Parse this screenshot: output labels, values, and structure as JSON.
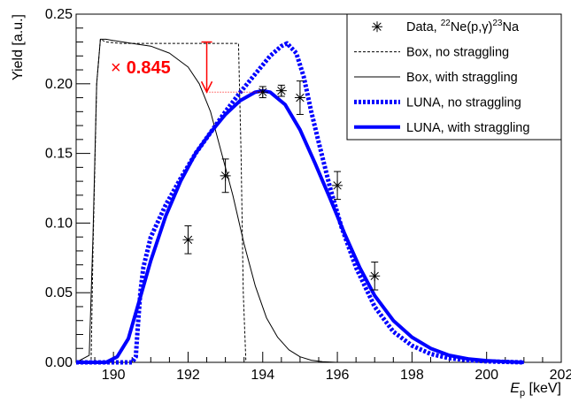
{
  "chart_data": {
    "type": "line",
    "xlabel": {
      "main": "E",
      "sub": "p",
      "unit": " [keV]"
    },
    "ylabel": "Yield [a.u.]",
    "xlim": [
      189,
      202
    ],
    "ylim": [
      0,
      0.25
    ],
    "x_ticks": [
      {
        "value": 190,
        "label": "190"
      },
      {
        "value": 192,
        "label": "192"
      },
      {
        "value": 194,
        "label": "194"
      },
      {
        "value": 196,
        "label": "196"
      },
      {
        "value": 198,
        "label": "198"
      },
      {
        "value": 200,
        "label": "200"
      },
      {
        "value": 202,
        "label": "202"
      }
    ],
    "y_ticks": [
      {
        "value": 0,
        "label": "0.00"
      },
      {
        "value": 0.05,
        "label": "0.05"
      },
      {
        "value": 0.1,
        "label": "0.10"
      },
      {
        "value": 0.15,
        "label": "0.15"
      },
      {
        "value": 0.2,
        "label": "0.20"
      },
      {
        "value": 0.25,
        "label": "0.25"
      }
    ],
    "legend": {
      "placement": "top-right",
      "entries": [
        {
          "key": "data",
          "label_parts": [
            "Data, ",
            "22",
            "Ne(p,γ)",
            "23",
            "Na"
          ],
          "superscripts": [
            1,
            3
          ]
        },
        {
          "key": "box_no",
          "label_parts": [
            "Box, no straggling"
          ],
          "superscripts": []
        },
        {
          "key": "box_with",
          "label_parts": [
            "Box, with straggling"
          ],
          "superscripts": []
        },
        {
          "key": "luna_no",
          "label_parts": [
            "LUNA, no straggling"
          ],
          "superscripts": []
        },
        {
          "key": "luna_with",
          "label_parts": [
            "LUNA, with straggling"
          ],
          "superscripts": []
        }
      ]
    },
    "annotation": {
      "symbol": "×",
      "text": "0.845",
      "color": "#ff0000",
      "arrow_x": 192.5,
      "arrow_from": 0.23,
      "arrow_to": 0.194,
      "guide_y": 0.194,
      "guide_x_range": [
        192.5,
        194.0
      ]
    },
    "colors": {
      "data": "#000000",
      "box": "#000000",
      "luna": "#0000ff",
      "annotation": "#ff0000"
    },
    "series": [
      {
        "key": "data",
        "style": "points",
        "points": [
          {
            "x": 192.0,
            "y": 0.088,
            "err": 0.01
          },
          {
            "x": 193.0,
            "y": 0.134,
            "err": 0.012
          },
          {
            "x": 194.0,
            "y": 0.194,
            "err": 0.004
          },
          {
            "x": 194.5,
            "y": 0.195,
            "err": 0.004
          },
          {
            "x": 195.0,
            "y": 0.19,
            "err": 0.012
          },
          {
            "x": 196.0,
            "y": 0.127,
            "err": 0.01
          },
          {
            "x": 197.0,
            "y": 0.062,
            "err": 0.01
          }
        ]
      },
      {
        "key": "box_no",
        "style": "thin-dashed",
        "x": [
          189.0,
          189.4,
          189.45,
          189.55,
          189.65,
          189.8,
          190.2,
          191.0,
          192.0,
          192.8,
          193.2,
          193.35,
          193.42,
          193.48,
          193.55,
          201.0
        ],
        "y": [
          0.0,
          0.0,
          0.08,
          0.2,
          0.232,
          0.23,
          0.229,
          0.229,
          0.229,
          0.229,
          0.229,
          0.229,
          0.15,
          0.05,
          0.0,
          0.0
        ]
      },
      {
        "key": "box_with",
        "style": "thin-solid",
        "x": [
          189.0,
          189.35,
          189.45,
          189.55,
          189.65,
          189.8,
          190.0,
          190.5,
          191.0,
          191.5,
          192.0,
          192.3,
          192.6,
          192.9,
          193.2,
          193.5,
          193.8,
          194.1,
          194.4,
          194.7,
          195.0,
          195.3,
          195.6,
          196.0,
          201.0
        ],
        "y": [
          0.0,
          0.005,
          0.09,
          0.2,
          0.232,
          0.232,
          0.231,
          0.229,
          0.227,
          0.222,
          0.212,
          0.2,
          0.18,
          0.15,
          0.12,
          0.085,
          0.055,
          0.032,
          0.018,
          0.009,
          0.004,
          0.0015,
          0.0005,
          0.0,
          0.0
        ]
      },
      {
        "key": "luna_no",
        "style": "thick-dotted",
        "x": [
          189.0,
          190.5,
          190.6,
          190.65,
          190.72,
          190.8,
          191.0,
          191.4,
          191.8,
          192.2,
          192.6,
          193.0,
          193.4,
          193.8,
          194.2,
          194.5,
          194.65,
          194.9,
          195.1,
          195.3,
          195.5,
          195.8,
          196.1,
          196.5,
          197.0,
          197.5,
          198.0,
          198.5,
          199.0,
          199.5,
          200.0,
          200.5,
          201.0
        ],
        "y": [
          0.0,
          0.0,
          0.004,
          0.025,
          0.05,
          0.068,
          0.09,
          0.113,
          0.132,
          0.15,
          0.165,
          0.18,
          0.194,
          0.207,
          0.22,
          0.227,
          0.229,
          0.222,
          0.205,
          0.18,
          0.158,
          0.126,
          0.098,
          0.068,
          0.04,
          0.022,
          0.012,
          0.006,
          0.003,
          0.0015,
          0.0007,
          0.0003,
          0.0
        ]
      },
      {
        "key": "luna_with",
        "style": "thick-solid",
        "x": [
          189.0,
          189.8,
          190.1,
          190.4,
          190.7,
          191.0,
          191.4,
          191.8,
          192.2,
          192.6,
          193.0,
          193.4,
          193.8,
          194.0,
          194.2,
          194.6,
          195.0,
          195.4,
          195.8,
          196.2,
          196.6,
          197.0,
          197.5,
          198.0,
          198.5,
          199.0,
          199.5,
          200.0,
          200.5,
          201.0
        ],
        "y": [
          0.0,
          0.0,
          0.004,
          0.017,
          0.045,
          0.073,
          0.105,
          0.13,
          0.15,
          0.165,
          0.178,
          0.188,
          0.194,
          0.195,
          0.194,
          0.185,
          0.167,
          0.143,
          0.118,
          0.092,
          0.068,
          0.048,
          0.03,
          0.018,
          0.01,
          0.005,
          0.0025,
          0.0012,
          0.0005,
          0.0
        ]
      }
    ]
  }
}
